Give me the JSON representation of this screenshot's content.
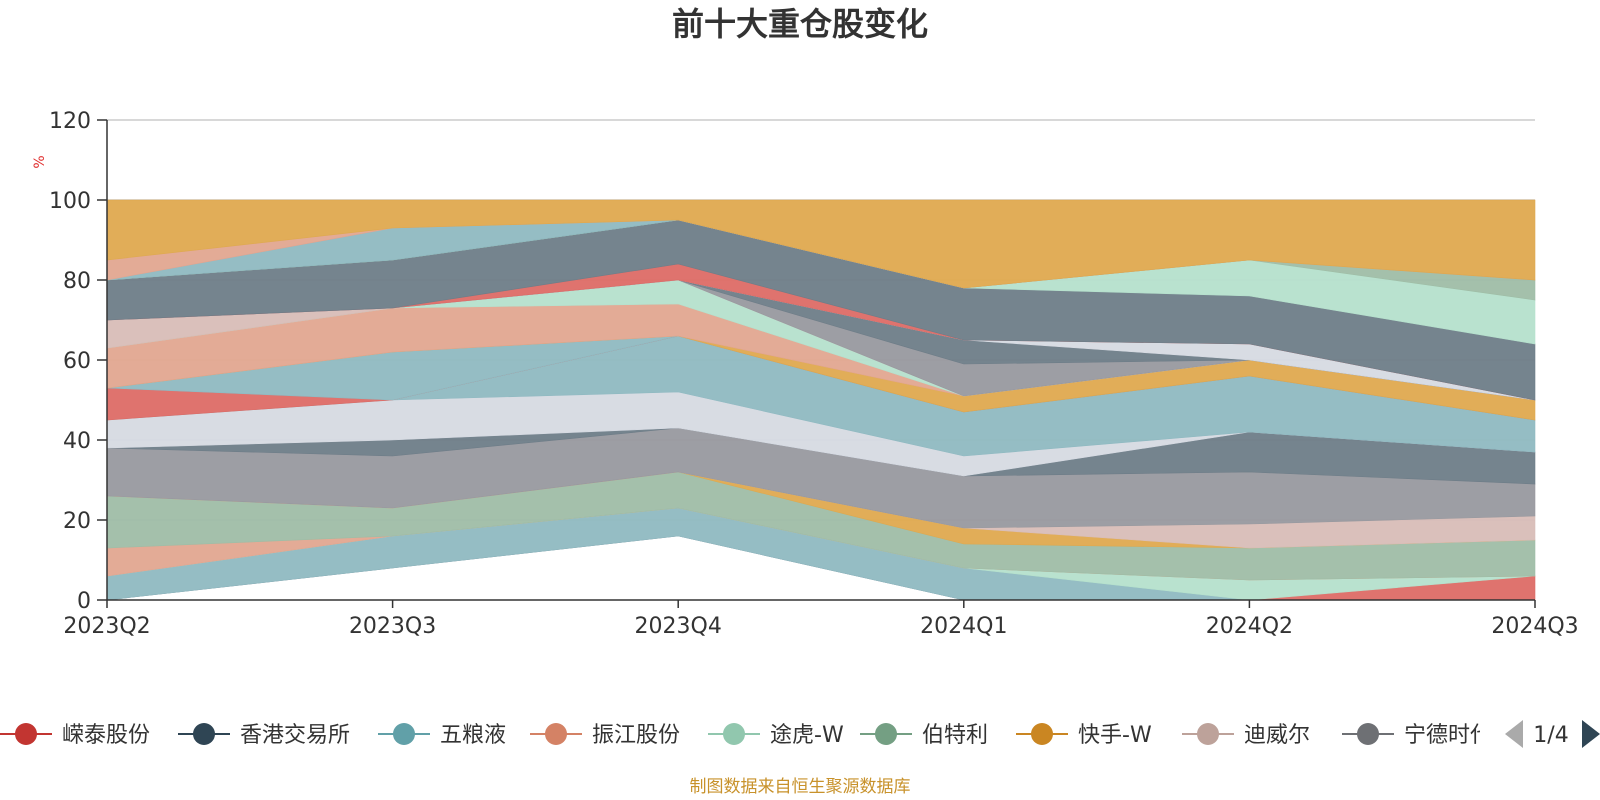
{
  "chart_data": {
    "type": "area",
    "title": "前十大重仓股变化",
    "ylabel": "%",
    "ylim": [
      0,
      120
    ],
    "yticks": [
      0,
      20,
      40,
      60,
      80,
      100,
      120
    ],
    "categories": [
      "2023Q2",
      "2023Q3",
      "2023Q4",
      "2024Q1",
      "2024Q2",
      "2024Q3"
    ],
    "bands": [
      {
        "color": "#6e7d88",
        "lower": [
          0,
          8,
          16,
          0,
          0,
          0
        ],
        "upper": [
          0,
          8,
          16,
          0,
          0,
          0
        ]
      },
      {
        "color": "#8fb9c1",
        "lower": [
          0,
          8,
          16,
          0,
          0,
          0
        ],
        "upper": [
          6,
          16,
          23,
          8,
          0,
          0
        ]
      },
      {
        "color": "#dd6b66",
        "lower": [
          0,
          0,
          0,
          0,
          0,
          0
        ],
        "upper": [
          0,
          0,
          0,
          0,
          0,
          6
        ]
      },
      {
        "color": "#b5e0cc",
        "lower": [
          6,
          16,
          23,
          8,
          0,
          6
        ],
        "upper": [
          6,
          16,
          23,
          8,
          5,
          6
        ]
      },
      {
        "color": "#e2a690",
        "lower": [
          6,
          16,
          23,
          8,
          5,
          6
        ],
        "upper": [
          13,
          16,
          23,
          8,
          5,
          6
        ]
      },
      {
        "color": "#9fbda6",
        "lower": [
          13,
          16,
          23,
          8,
          5,
          6
        ],
        "upper": [
          26,
          23,
          32,
          14,
          13,
          15
        ]
      },
      {
        "color": "#dfa94f",
        "lower": [
          26,
          23,
          32,
          14,
          13,
          15
        ],
        "upper": [
          26,
          23,
          32,
          18,
          13,
          15
        ]
      },
      {
        "color": "#d8bdb7",
        "lower": [
          26,
          23,
          32,
          18,
          13,
          15
        ],
        "upper": [
          26,
          23,
          32,
          18,
          19,
          21
        ]
      },
      {
        "color": "#98999f",
        "lower": [
          26,
          23,
          32,
          18,
          19,
          21
        ],
        "upper": [
          38,
          36,
          43,
          31,
          32,
          29
        ]
      },
      {
        "color": "#6e7d88",
        "lower": [
          38,
          36,
          43,
          31,
          32,
          29
        ],
        "upper": [
          38,
          40,
          43,
          31,
          42,
          37
        ]
      },
      {
        "color": "#d6dae2",
        "lower": [
          38,
          40,
          43,
          31,
          42,
          37
        ],
        "upper": [
          45,
          50,
          52,
          36,
          42,
          37
        ]
      },
      {
        "color": "#8fb9c1",
        "lower": [
          45,
          50,
          52,
          36,
          42,
          37
        ],
        "upper": [
          45,
          50,
          66,
          47,
          56,
          45
        ]
      },
      {
        "color": "#dd6b66",
        "lower": [
          45,
          50,
          66,
          47,
          56,
          45
        ],
        "upper": [
          53,
          50,
          66,
          47,
          56,
          45
        ]
      },
      {
        "color": "#8fb9c1",
        "lower": [
          53,
          50,
          66,
          47,
          56,
          45
        ],
        "upper": [
          53,
          62,
          66,
          47,
          56,
          45
        ]
      },
      {
        "color": "#dfa94f",
        "lower": [
          53,
          62,
          66,
          47,
          56,
          45
        ],
        "upper": [
          53,
          62,
          66,
          51,
          60,
          50
        ]
      },
      {
        "color": "#e2a690",
        "lower": [
          53,
          62,
          66,
          51,
          60,
          50
        ],
        "upper": [
          63,
          73,
          74,
          51,
          60,
          50
        ]
      },
      {
        "color": "#b5e0cc",
        "lower": [
          63,
          73,
          74,
          51,
          60,
          50
        ],
        "upper": [
          63,
          73,
          80,
          51,
          60,
          50
        ]
      },
      {
        "color": "#d8bdb7",
        "lower": [
          63,
          73,
          80,
          51,
          60,
          50
        ],
        "upper": [
          70,
          73,
          80,
          51,
          60,
          50
        ]
      },
      {
        "color": "#98999f",
        "lower": [
          70,
          73,
          80,
          51,
          60,
          50
        ],
        "upper": [
          70,
          73,
          80,
          59,
          60,
          50
        ]
      },
      {
        "color": "#6e7d88",
        "lower": [
          70,
          73,
          80,
          59,
          60,
          50
        ],
        "upper": [
          70,
          73,
          80,
          65,
          60,
          50
        ]
      },
      {
        "color": "#d6dae2",
        "lower": [
          70,
          73,
          80,
          65,
          60,
          50
        ],
        "upper": [
          70,
          73,
          80,
          65,
          64,
          50
        ]
      },
      {
        "color": "#dd6b66",
        "lower": [
          70,
          73,
          80,
          65,
          64,
          50
        ],
        "upper": [
          70,
          73,
          84,
          65,
          64,
          50
        ]
      },
      {
        "color": "#6e7d88",
        "lower": [
          70,
          73,
          84,
          65,
          64,
          50
        ],
        "upper": [
          80,
          85,
          95,
          78,
          76,
          64
        ]
      },
      {
        "color": "#b5e0cc",
        "lower": [
          80,
          85,
          95,
          78,
          76,
          64
        ],
        "upper": [
          80,
          85,
          95,
          78,
          85,
          75
        ]
      },
      {
        "color": "#9fbda6",
        "lower": [
          80,
          85,
          95,
          78,
          85,
          75
        ],
        "upper": [
          80,
          85,
          95,
          78,
          85,
          80
        ]
      },
      {
        "color": "#8fb9c1",
        "lower": [
          80,
          85,
          95,
          78,
          85,
          80
        ],
        "upper": [
          80,
          93,
          95,
          78,
          85,
          80
        ]
      },
      {
        "color": "#e2a690",
        "lower": [
          80,
          93,
          95,
          78,
          85,
          80
        ],
        "upper": [
          85,
          93,
          95,
          78,
          85,
          80
        ]
      },
      {
        "color": "#dfa94f",
        "lower": [
          85,
          93,
          95,
          78,
          85,
          80
        ],
        "upper": [
          100,
          100,
          100,
          100,
          100,
          100
        ]
      }
    ],
    "legend": {
      "items": [
        {
          "name": "嵘泰股份",
          "color": "#c23531"
        },
        {
          "name": "香港交易所",
          "color": "#2f4554"
        },
        {
          "name": "五粮液",
          "color": "#61a0a8"
        },
        {
          "name": "振江股份",
          "color": "#d48265"
        },
        {
          "name": "途虎-W",
          "color": "#91c7ae"
        },
        {
          "name": "伯特利",
          "color": "#749f83"
        },
        {
          "name": "快手-W",
          "color": "#ca8622"
        },
        {
          "name": "迪威尔",
          "color": "#bda29a"
        },
        {
          "name": "宁德时代",
          "color": "#6e7074"
        }
      ],
      "page": "1/4"
    },
    "source_note": "制图数据来自恒生聚源数据库"
  }
}
